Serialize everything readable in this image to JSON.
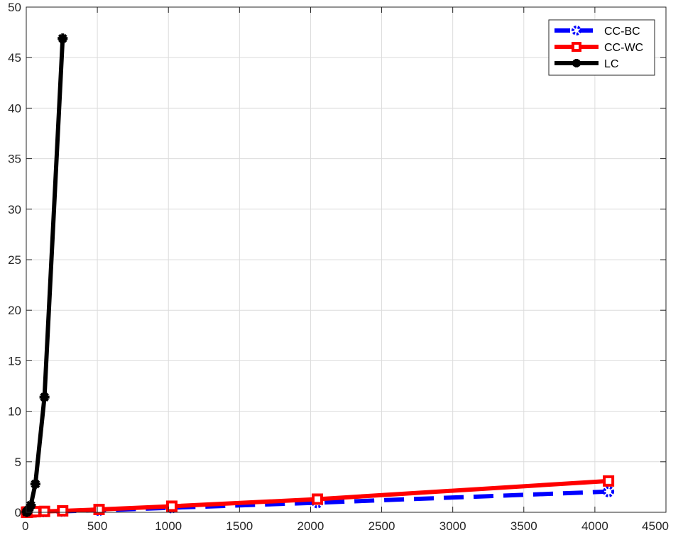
{
  "chart_data": {
    "type": "line",
    "title": "",
    "xlabel": "",
    "ylabel": "",
    "xlim": [
      0,
      4500
    ],
    "ylim": [
      0,
      50
    ],
    "xticks": [
      0,
      500,
      1000,
      1500,
      2000,
      2500,
      3000,
      3500,
      4000,
      4500
    ],
    "yticks": [
      0,
      5,
      10,
      15,
      20,
      25,
      30,
      35,
      40,
      45,
      50
    ],
    "grid": true,
    "legend_position": "top-right",
    "series": [
      {
        "name": "CC-BC",
        "color": "#0000ff",
        "line_style": "dashed",
        "marker": "circle",
        "x": [
          2,
          4,
          8,
          16,
          32,
          64,
          128,
          256,
          512,
          1024,
          2048,
          4096
        ],
        "y": [
          0.01,
          0.01,
          0.01,
          0.02,
          0.03,
          0.04,
          0.06,
          0.1,
          0.2,
          0.45,
          0.95,
          2.05
        ]
      },
      {
        "name": "CC-WC",
        "color": "#ff0000",
        "line_style": "solid",
        "marker": "square",
        "x": [
          2,
          4,
          8,
          16,
          32,
          64,
          128,
          256,
          512,
          1024,
          2048,
          4096
        ],
        "y": [
          0.01,
          0.01,
          0.02,
          0.03,
          0.04,
          0.06,
          0.09,
          0.14,
          0.28,
          0.6,
          1.3,
          3.1
        ]
      },
      {
        "name": "LC",
        "color": "#000000",
        "line_style": "solid",
        "marker": "asterisk",
        "x": [
          2,
          4,
          8,
          16,
          32,
          64,
          128,
          256
        ],
        "y": [
          0.02,
          0.05,
          0.1,
          0.25,
          0.7,
          2.8,
          11.4,
          46.9
        ]
      }
    ]
  }
}
